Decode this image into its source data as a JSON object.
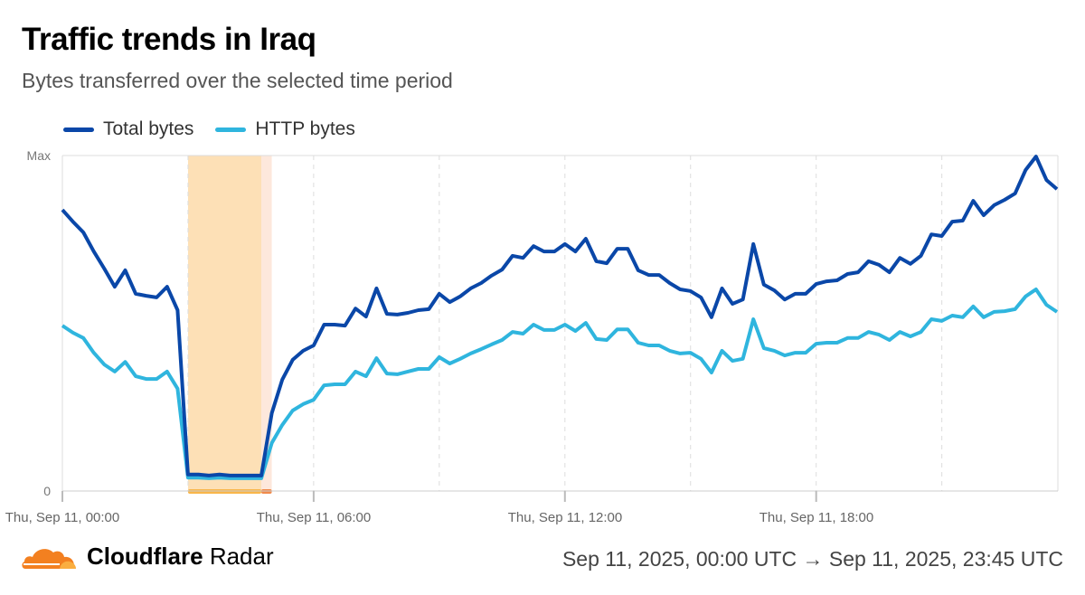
{
  "header": {
    "title": "Traffic trends in Iraq",
    "subtitle": "Bytes transferred over the selected time period"
  },
  "footer": {
    "brand_bold": "Cloudflare",
    "brand_light": "Radar",
    "logo_icon": "cloudflare-cloud-icon",
    "logo_color": "#f38020",
    "date_range": "Sep 11, 2025, 00:00 UTC → Sep 11, 2025, 23:45 UTC"
  },
  "chart_data": {
    "type": "line",
    "x_interval": "15 minutes",
    "x_start": "00:00",
    "x_end": "23:45",
    "y_tick_labels": [
      "0",
      "Max"
    ],
    "ylim": [
      0,
      100
    ],
    "x_tick_labels": [
      "Thu, Sep 11, 00:00",
      "Thu, Sep 11, 06:00",
      "Thu, Sep 11, 12:00",
      "Thu, Sep 11, 18:00"
    ],
    "x_gridlines_every_hours": 3,
    "legend_position": "top-left",
    "annotations": [
      {
        "from": "03:00",
        "to": "04:45",
        "color": "#fde0b6",
        "bar_color": "#f9b64a"
      },
      {
        "from": "04:45",
        "to": "05:00",
        "color": "#fde8dc",
        "bar_color": "#f08a4b"
      }
    ],
    "series": [
      {
        "name": "Total bytes",
        "color": "#0a47a8",
        "values": [
          83.8,
          80.3,
          77.1,
          71.4,
          66.3,
          60.9,
          65.8,
          58.8,
          58.2,
          57.7,
          60.9,
          53.9,
          4.9,
          4.9,
          4.6,
          4.9,
          4.6,
          4.6,
          4.6,
          4.6,
          23.2,
          33.2,
          39.1,
          41.8,
          43.4,
          49.6,
          49.6,
          49.3,
          54.4,
          52.0,
          60.4,
          52.8,
          52.6,
          53.1,
          53.9,
          54.2,
          58.8,
          56.3,
          58.0,
          60.4,
          62.0,
          64.2,
          66.0,
          70.1,
          69.5,
          73.0,
          71.4,
          71.4,
          73.6,
          71.4,
          75.2,
          68.5,
          67.9,
          72.2,
          72.2,
          65.8,
          64.4,
          64.4,
          62.0,
          60.1,
          59.6,
          57.7,
          51.8,
          60.4,
          55.8,
          57.1,
          73.6,
          61.5,
          59.8,
          57.1,
          58.8,
          58.8,
          61.7,
          62.5,
          62.8,
          64.7,
          65.2,
          68.5,
          67.4,
          65.2,
          69.5,
          67.7,
          70.1,
          76.5,
          76.0,
          80.3,
          80.6,
          86.5,
          82.2,
          85.2,
          86.8,
          88.7,
          95.7,
          99.7,
          92.7,
          90.0
        ]
      },
      {
        "name": "HTTP bytes",
        "color": "#2fb5de",
        "values": [
          49.3,
          47.2,
          45.6,
          41.2,
          37.7,
          35.6,
          38.5,
          34.2,
          33.4,
          33.4,
          35.6,
          30.5,
          4.0,
          4.0,
          3.8,
          4.0,
          3.8,
          3.8,
          3.8,
          3.8,
          14.3,
          19.7,
          24.0,
          25.9,
          27.2,
          31.5,
          31.8,
          31.8,
          35.6,
          34.2,
          39.6,
          35.0,
          34.8,
          35.6,
          36.4,
          36.4,
          39.9,
          38.0,
          39.4,
          41.0,
          42.3,
          43.7,
          45.0,
          47.4,
          46.9,
          49.6,
          48.0,
          48.0,
          49.6,
          47.7,
          50.1,
          45.3,
          45.0,
          48.2,
          48.2,
          44.2,
          43.4,
          43.4,
          41.8,
          41.0,
          41.2,
          39.4,
          35.3,
          41.8,
          38.8,
          39.4,
          51.2,
          42.6,
          41.8,
          40.4,
          41.2,
          41.2,
          43.9,
          44.2,
          44.2,
          45.6,
          45.6,
          47.4,
          46.6,
          45.0,
          47.4,
          46.1,
          47.4,
          51.2,
          50.7,
          52.3,
          51.8,
          55.0,
          51.8,
          53.4,
          53.6,
          54.2,
          58.0,
          60.1,
          55.5,
          53.4
        ]
      }
    ]
  }
}
